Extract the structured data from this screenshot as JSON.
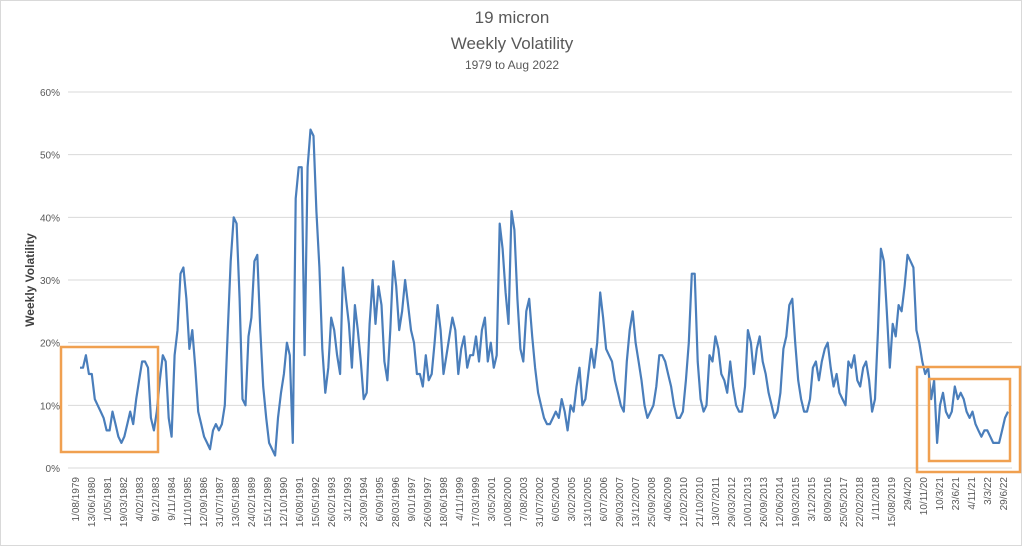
{
  "title": "19 micron",
  "subtitle": "Weekly Volatility",
  "subtitle2": "1979 to Aug 2022",
  "colors": {
    "line": "#4a7ebb",
    "highlight": "#f0a050",
    "grid": "#d9d9d9",
    "text": "#595959"
  },
  "chart_data": {
    "type": "line",
    "title": "19 micron",
    "subtitle": "Weekly Volatility",
    "subtitle2": "1979 to Aug 2022",
    "xlabel": "",
    "ylabel": "Weekly Volatility",
    "ylim": [
      0,
      60
    ],
    "y_ticks": [
      "0%",
      "10%",
      "20%",
      "30%",
      "40%",
      "50%",
      "60%"
    ],
    "grid": "horizontal",
    "x_tick_labels": [
      "1/08/1979",
      "13/06/1980",
      "1/05/1981",
      "19/03/1982",
      "4/02/1983",
      "9/12/1983",
      "9/11/1984",
      "11/10/1985",
      "12/09/1986",
      "31/07/1987",
      "13/05/1988",
      "24/02/1989",
      "15/12/1989",
      "12/10/1990",
      "16/08/1991",
      "15/05/1992",
      "26/02/1993",
      "3/12/1993",
      "23/09/1994",
      "6/09/1995",
      "28/03/1996",
      "9/01/1997",
      "26/09/1997",
      "18/06/1998",
      "4/11/1999",
      "17/03/1999",
      "3/05/2001",
      "10/08/2000",
      "7/08/2003",
      "31/07/2002",
      "6/05/2004",
      "3/02/2005",
      "13/10/2005",
      "6/07/2006",
      "29/03/2007",
      "13/12/2007",
      "25/09/2008",
      "4/06/2009",
      "12/02/2010",
      "21/10/2010",
      "13/07/2011",
      "29/03/2012",
      "10/01/2013",
      "26/09/2013",
      "12/06/2014",
      "19/03/2015",
      "3/12/2015",
      "8/09/2016",
      "25/05/2017",
      "22/02/2018",
      "1/11/2018",
      "15/08/2019",
      "29/4/20",
      "10/11/20",
      "10/3/21",
      "23/6/21",
      "4/11/21",
      "3/3/22",
      "29/6/22"
    ],
    "series": [
      {
        "values": [
          16,
          16,
          18,
          15,
          15,
          11,
          10,
          9,
          8,
          6,
          6,
          9,
          7,
          5,
          4,
          5,
          7,
          9,
          7,
          11,
          14,
          17,
          17,
          16,
          8,
          6,
          9,
          14,
          18,
          17,
          8,
          5,
          18,
          22,
          31,
          32,
          27,
          19,
          22,
          16,
          9,
          7,
          5,
          4,
          3,
          6,
          7,
          6,
          7,
          10,
          22,
          33,
          40,
          39,
          27,
          11,
          10,
          21,
          24,
          33,
          34,
          22,
          13,
          8,
          4,
          3,
          2,
          8,
          12,
          15,
          20,
          18,
          4,
          43,
          48,
          48,
          18,
          48,
          54,
          53,
          41,
          32,
          19,
          12,
          16,
          24,
          22,
          18,
          15,
          32,
          27,
          23,
          16,
          26,
          22,
          17,
          11,
          12,
          23,
          30,
          23,
          29,
          26,
          17,
          14,
          22,
          33,
          29,
          22,
          25,
          30,
          26,
          22,
          20,
          15,
          15,
          13,
          18,
          14,
          15,
          20,
          26,
          22,
          15,
          18,
          21,
          24,
          22,
          15,
          19,
          21,
          16,
          18,
          18,
          21,
          17,
          22,
          24,
          17,
          20,
          16,
          18,
          39,
          35,
          28,
          23,
          41,
          38,
          27,
          19,
          17,
          25,
          27,
          21,
          16,
          12,
          10,
          8,
          7,
          7,
          8,
          9,
          8,
          11,
          9,
          6,
          10,
          9,
          13,
          16,
          10,
          11,
          15,
          19,
          16,
          20,
          28,
          24,
          19,
          18,
          17,
          14,
          12,
          10,
          9,
          17,
          22,
          25,
          20,
          17,
          14,
          10,
          8,
          9,
          10,
          13,
          18,
          18,
          17,
          15,
          13,
          10,
          8,
          8,
          9,
          14,
          20,
          31,
          31,
          17,
          11,
          9,
          10,
          18,
          17,
          21,
          19,
          15,
          14,
          12,
          17,
          13,
          10,
          9,
          9,
          13,
          22,
          20,
          15,
          19,
          21,
          17,
          15,
          12,
          10,
          8,
          9,
          12,
          19,
          21,
          26,
          27,
          20,
          14,
          11,
          9,
          9,
          11,
          16,
          17,
          14,
          17,
          19,
          20,
          16,
          13,
          15,
          12,
          11,
          10,
          17,
          16,
          18,
          14,
          13,
          16,
          17,
          14,
          9,
          11,
          22,
          35,
          33,
          25,
          16,
          23,
          21,
          26,
          25,
          29,
          34,
          33,
          32,
          22,
          20,
          17,
          15,
          16,
          11,
          14,
          4,
          10,
          12,
          9,
          8,
          9,
          13,
          11,
          12,
          11,
          9,
          8,
          9,
          7,
          6,
          5,
          6,
          6,
          5,
          4,
          4,
          4,
          6,
          8,
          9
        ]
      }
    ]
  },
  "highlights": [
    "left-highlight-box",
    "right-highlight-box"
  ]
}
